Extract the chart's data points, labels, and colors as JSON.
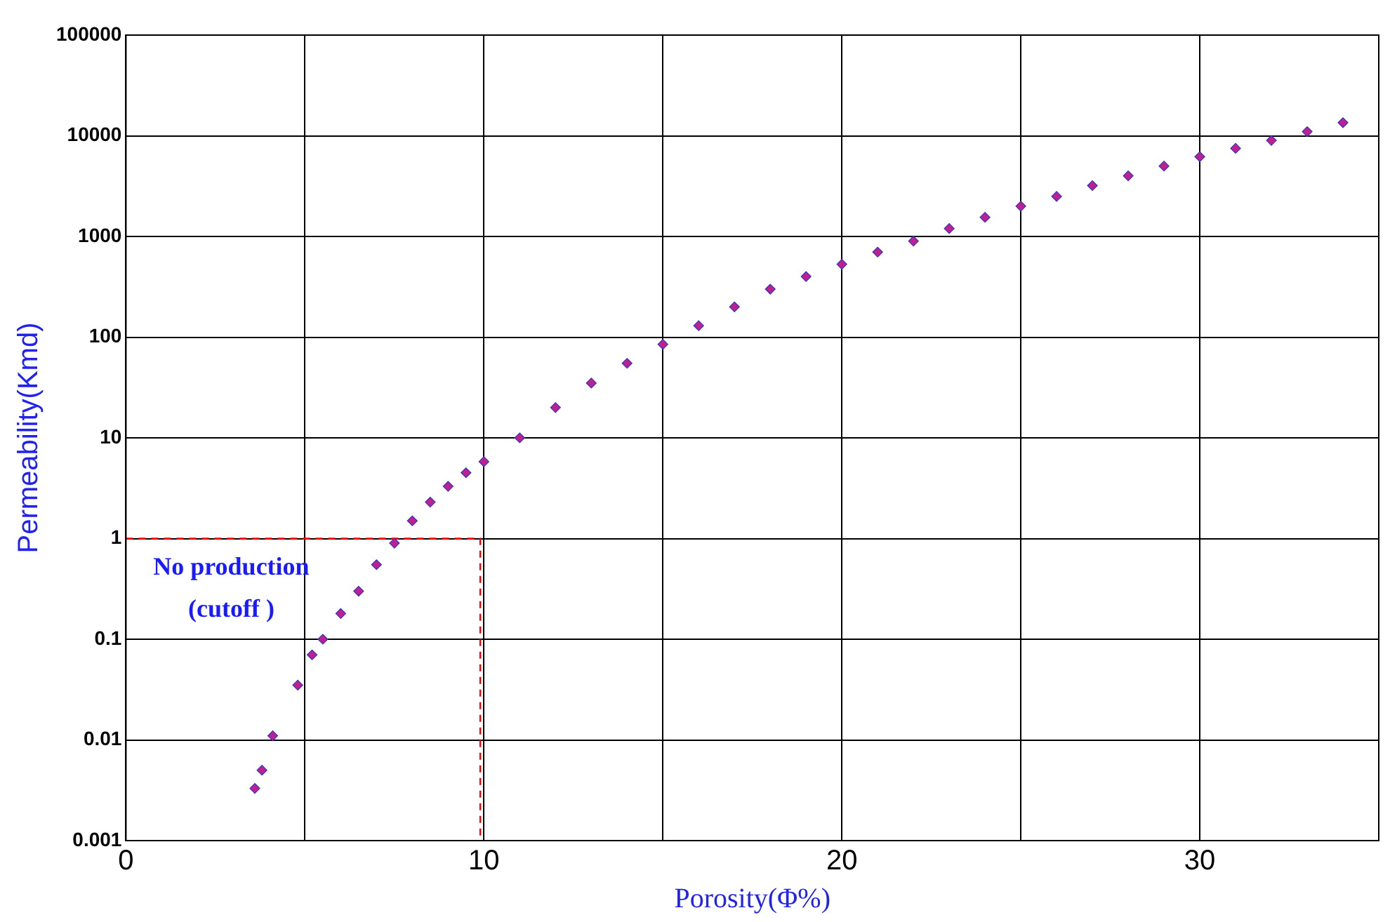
{
  "chart_data": {
    "type": "scatter",
    "xlabel": "Porosity(Φ%)",
    "ylabel": "Permeability(Kmd)",
    "log": "y",
    "grid": true,
    "legend": false,
    "marker": "diamond",
    "xlim": [
      0,
      35
    ],
    "xticks": [
      0,
      {
        "value": 5,
        "label": null
      },
      10,
      {
        "value": 15,
        "label": null
      },
      20,
      {
        "value": 25,
        "label": null
      },
      30
    ],
    "ylim": [
      0.001,
      100000
    ],
    "yticks": [
      0.001,
      0.01,
      0.1,
      1,
      10,
      100,
      1000,
      10000,
      100000
    ],
    "series": [
      {
        "color": "#c0208c",
        "x": [
          3.6,
          3.8,
          4.1,
          4.8,
          5.2,
          5.5,
          6,
          6.5,
          7,
          7.5,
          8,
          8.5,
          9,
          9.5,
          10,
          11,
          12,
          13,
          14,
          15,
          16,
          17,
          18,
          19,
          20,
          21,
          22,
          23,
          24,
          25,
          26,
          27,
          28,
          29,
          30,
          31,
          32,
          33,
          34
        ],
        "values": [
          0.0033,
          0.005,
          0.011,
          0.035,
          0.07,
          0.1,
          0.18,
          0.3,
          0.55,
          0.9,
          1.5,
          2.3,
          3.3,
          4.5,
          5.8,
          10,
          20,
          35,
          55,
          85,
          130,
          200,
          300,
          400,
          530,
          700,
          900,
          1200,
          1550,
          2000,
          2500,
          3200,
          4000,
          5000,
          6200,
          7500,
          9000,
          11000,
          13500
        ]
      },
      {
        "type": "line",
        "color": "#ff0000",
        "line_style": "dashed",
        "marker": "none",
        "x": [
          0,
          9.9,
          9.9
        ],
        "values": [
          1,
          1,
          0.001
        ]
      }
    ],
    "annotations": [
      "No production\n(cutoff )"
    ]
  }
}
